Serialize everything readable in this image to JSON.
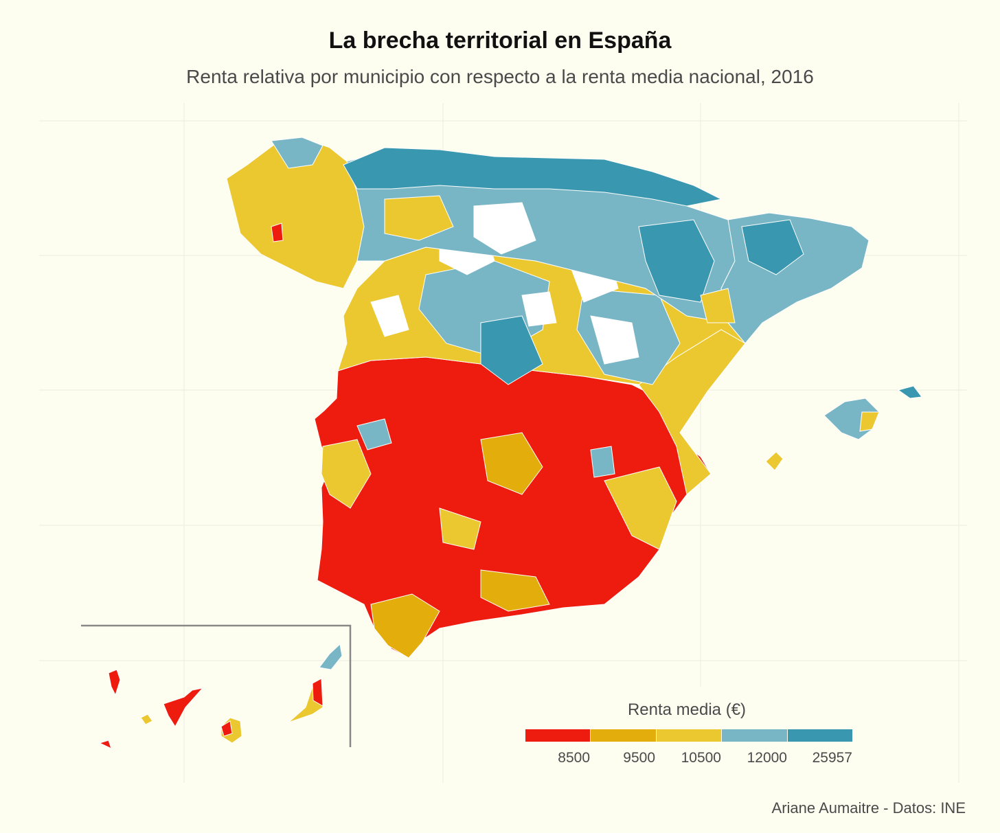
{
  "title": "La brecha territorial en España",
  "subtitle": "Renta relativa por municipio con respecto a la renta media nacional, 2016",
  "legend": {
    "title": "Renta media (€)",
    "breaks": [
      "8500",
      "9500",
      "10500",
      "12000",
      "25957"
    ],
    "colors": [
      "#ee1c0e",
      "#e3ad0c",
      "#ebc830",
      "#79b6c5",
      "#3a97b0"
    ]
  },
  "caption": "Ariane Aumaitre - Datos: INE",
  "regions": {
    "north_coast": "#3a97b0",
    "north_interior": "#79b6c5",
    "galicia": "#ebc830",
    "castilla": "#ebc830",
    "south": "#ee1c0e",
    "southwest": "#e3ad0c",
    "islands": "#79b6c5"
  }
}
